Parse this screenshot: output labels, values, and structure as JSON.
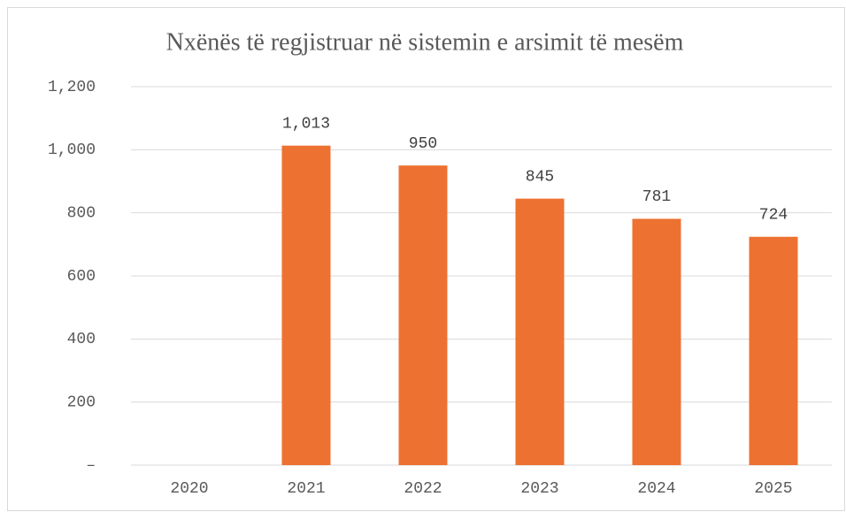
{
  "chart_data": {
    "type": "bar",
    "title": "Nxënës të regjistruar në sistemin e arsimit të mesëm",
    "categories": [
      "2020",
      "2021",
      "2022",
      "2023",
      "2024",
      "2025"
    ],
    "values": [
      null,
      1013,
      950,
      845,
      781,
      724
    ],
    "value_labels": [
      null,
      "1,013",
      "950",
      "845",
      "781",
      "724"
    ],
    "color": "#ed7131",
    "ylim": [
      0,
      1200
    ],
    "yticks": [
      {
        "value": 0,
        "label": "–"
      },
      200,
      400,
      600,
      800,
      {
        "value": 1000,
        "label": "1,000"
      },
      {
        "value": 1200,
        "label": "1,200"
      }
    ],
    "grid": true
  }
}
